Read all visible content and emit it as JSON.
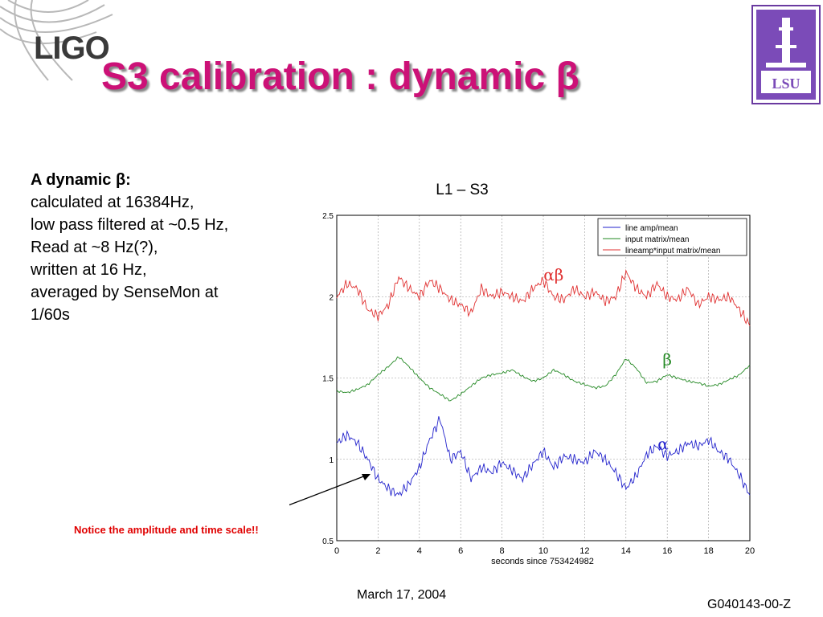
{
  "header": {
    "logo_text": "LIGO",
    "title": "S3 calibration : dynamic β"
  },
  "description": {
    "heading": "A dynamic β:",
    "lines": [
      "calculated at 16384Hz,",
      "low pass filtered at ~0.5 Hz,",
      "Read at ~8 Hz(?),",
      "written at 16 Hz,",
      "averaged by SenseMon at",
      "1/60s"
    ]
  },
  "notice": "Notice the amplitude and time scale!!",
  "footer": {
    "date": "March 17, 2004",
    "doc_id": "G040143-00-Z"
  },
  "colors": {
    "title": "#cc1177",
    "alpha": "#2222cc",
    "beta": "#228822",
    "alphabeta": "#e03030",
    "notice": "#e00000"
  },
  "chart_data": {
    "type": "line",
    "title": "L1 – S3",
    "xlabel": "seconds since 753424982",
    "ylabel": "",
    "xlim": [
      0,
      20
    ],
    "ylim": [
      0.5,
      2.5
    ],
    "xticks": [
      0,
      2,
      4,
      6,
      8,
      10,
      12,
      14,
      16,
      18,
      20
    ],
    "yticks": [
      0.5,
      1,
      1.5,
      2,
      2.5
    ],
    "grid": true,
    "legend_position": "top-right",
    "annotations": [
      "αβ",
      "β",
      "α"
    ],
    "series": [
      {
        "name": "line amp/mean",
        "color": "#2222cc",
        "x": [
          0,
          0.5,
          1,
          1.5,
          2,
          2.5,
          3,
          3.5,
          4,
          4.5,
          5,
          5.5,
          6,
          6.5,
          7,
          7.5,
          8,
          8.5,
          9,
          9.5,
          10,
          10.5,
          11,
          11.5,
          12,
          12.5,
          13,
          13.5,
          14,
          14.5,
          15,
          15.5,
          16,
          16.5,
          17,
          17.5,
          18,
          18.5,
          19,
          19.5,
          20
        ],
        "values": [
          1.1,
          1.15,
          1.1,
          1.0,
          0.88,
          0.82,
          0.78,
          0.85,
          0.95,
          1.12,
          1.25,
          1.0,
          1.05,
          0.88,
          0.95,
          0.92,
          0.98,
          0.93,
          0.88,
          0.97,
          1.05,
          0.95,
          1.02,
          1.0,
          0.98,
          1.05,
          1.0,
          0.92,
          0.82,
          0.9,
          1.03,
          1.08,
          1.02,
          1.05,
          1.1,
          1.08,
          1.12,
          1.05,
          1.0,
          0.9,
          0.78
        ]
      },
      {
        "name": "input matrix/mean",
        "color": "#228822",
        "x": [
          0,
          0.5,
          1,
          1.5,
          2,
          2.5,
          3,
          3.5,
          4,
          4.5,
          5,
          5.5,
          6,
          6.5,
          7,
          7.5,
          8,
          8.5,
          9,
          9.5,
          10,
          10.5,
          11,
          11.5,
          12,
          12.5,
          13,
          13.5,
          14,
          14.5,
          15,
          15.5,
          16,
          16.5,
          17,
          17.5,
          18,
          18.5,
          19,
          19.5,
          20
        ],
        "values": [
          1.42,
          1.41,
          1.43,
          1.46,
          1.52,
          1.57,
          1.63,
          1.57,
          1.5,
          1.44,
          1.4,
          1.36,
          1.4,
          1.45,
          1.5,
          1.52,
          1.53,
          1.55,
          1.51,
          1.48,
          1.5,
          1.55,
          1.52,
          1.48,
          1.46,
          1.44,
          1.45,
          1.52,
          1.62,
          1.56,
          1.47,
          1.48,
          1.52,
          1.5,
          1.48,
          1.47,
          1.45,
          1.46,
          1.49,
          1.52,
          1.58
        ]
      },
      {
        "name": "lineamp*input matrix/mean",
        "color": "#e03030",
        "x": [
          0,
          0.5,
          1,
          1.5,
          2,
          2.5,
          3,
          3.5,
          4,
          4.5,
          5,
          5.5,
          6,
          6.5,
          7,
          7.5,
          8,
          8.5,
          9,
          9.5,
          10,
          10.5,
          11,
          11.5,
          12,
          12.5,
          13,
          13.5,
          14,
          14.5,
          15,
          15.5,
          16,
          16.5,
          17,
          17.5,
          18,
          18.5,
          19,
          19.5,
          20
        ],
        "values": [
          2.0,
          2.08,
          2.05,
          1.92,
          1.88,
          1.95,
          2.12,
          2.05,
          2.0,
          2.1,
          2.05,
          1.98,
          1.95,
          1.9,
          2.05,
          2.0,
          2.03,
          2.0,
          1.97,
          2.05,
          2.1,
          2.0,
          1.98,
          2.05,
          2.0,
          2.03,
          1.97,
          2.0,
          2.15,
          2.05,
          2.0,
          2.08,
          2.0,
          1.98,
          2.05,
          1.95,
          2.0,
          1.98,
          2.0,
          1.92,
          1.82
        ]
      }
    ]
  }
}
